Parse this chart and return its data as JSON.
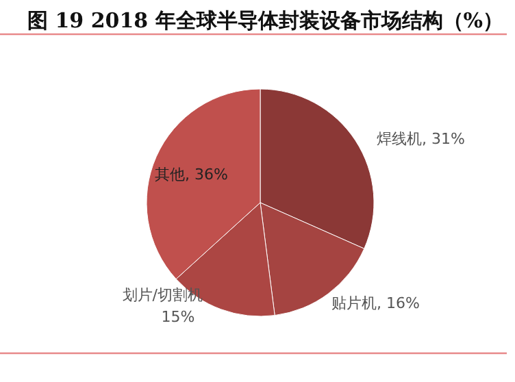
{
  "chart_data": {
    "type": "pie",
    "title": "图 19 2018 年全球半导体封装设备市场结构（%）",
    "categories": [
      "焊线机",
      "贴片机",
      "划片/切割机",
      "其他"
    ],
    "values": [
      31,
      16,
      15,
      36
    ],
    "value_labels": [
      "31%",
      "16%",
      "15%",
      "36%"
    ],
    "colors": [
      "#8b3836",
      "#a54441",
      "#ac4643",
      "#c0504d"
    ]
  }
}
